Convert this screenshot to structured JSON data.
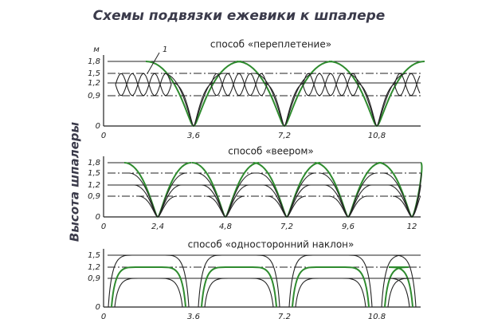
{
  "title": "Схемы подвязки ежевики к шпалере",
  "y_axis_label": "Высота шпалеры",
  "panels": [
    {
      "title": "способ «переплетение»",
      "y_unit": "м",
      "callout": "1",
      "y_ticks": [
        "1,8",
        "1,5",
        "1,2",
        "0,9",
        "0"
      ],
      "x_ticks": [
        "0",
        "3,6",
        "7,2",
        "10,8"
      ]
    },
    {
      "title": "способ «веером»",
      "y_ticks": [
        "1,8",
        "1,5",
        "1,2",
        "0,9",
        "0"
      ],
      "x_ticks": [
        "0",
        "2,4",
        "4,8",
        "7,2",
        "9,6",
        "12"
      ]
    },
    {
      "title": "способ «односторонний наклон»",
      "y_ticks": [
        "1,5",
        "1,2",
        "0,9",
        "0"
      ],
      "x_ticks": [
        "0",
        "3,6",
        "7,2",
        "10,8"
      ]
    }
  ]
}
